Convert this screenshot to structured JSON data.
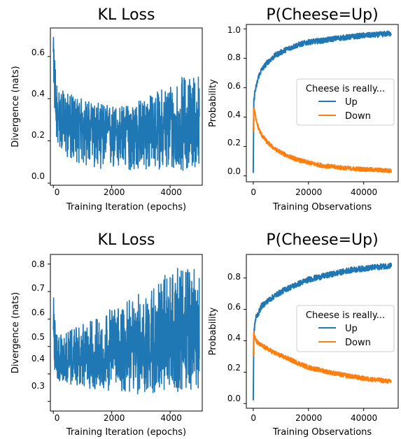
{
  "chart_data": [
    {
      "type": "line",
      "title": "KL Loss",
      "xlabel": "Training Iteration (epochs)",
      "ylabel": "Divergence (nats)",
      "xlim": [
        -100,
        5100
      ],
      "ylim": [
        -0.01,
        0.735
      ],
      "xticks": [
        0,
        2000,
        4000
      ],
      "xtick_labels": [
        "0",
        "2000",
        "4000"
      ],
      "yticks": [
        0.0,
        0.2,
        0.4,
        0.6
      ],
      "ytick_labels": [
        "0.0",
        "0.2",
        "0.4",
        "0.6"
      ],
      "grid": false,
      "color": "#1f77b4",
      "series": [
        {
          "x": [
            0,
            50,
            100,
            200,
            400,
            600,
            800,
            1000,
            1500,
            2000,
            2500,
            3000,
            3500,
            4000,
            4500,
            5000
          ],
          "mean": [
            0.6,
            0.42,
            0.35,
            0.32,
            0.3,
            0.29,
            0.28,
            0.27,
            0.26,
            0.25,
            0.25,
            0.25,
            0.255,
            0.26,
            0.265,
            0.27
          ],
          "low": [
            0.55,
            0.3,
            0.2,
            0.17,
            0.13,
            0.11,
            0.1,
            0.08,
            0.07,
            0.06,
            0.06,
            0.05,
            0.07,
            0.05,
            0.06,
            0.08
          ],
          "high": [
            0.7,
            0.62,
            0.5,
            0.45,
            0.43,
            0.42,
            0.41,
            0.4,
            0.38,
            0.37,
            0.37,
            0.4,
            0.43,
            0.48,
            0.51,
            0.52
          ]
        }
      ]
    },
    {
      "type": "line",
      "title": "P(Cheese=Up)",
      "xlabel": "Training Observations",
      "ylabel": "Probability",
      "xlim": [
        -2500,
        52500
      ],
      "ylim": [
        -0.04,
        1.03
      ],
      "xticks": [
        0,
        20000,
        40000
      ],
      "xtick_labels": [
        "0",
        "20000",
        "40000"
      ],
      "yticks": [
        0.0,
        0.2,
        0.4,
        0.6,
        0.8,
        1.0
      ],
      "ytick_labels": [
        "0.0",
        "0.2",
        "0.4",
        "0.6",
        "0.8",
        "1.0"
      ],
      "grid": false,
      "legend": {
        "title": "Cheese is really...",
        "placement": "center-right"
      },
      "series": [
        {
          "name": "Up",
          "color": "#1f77b4",
          "x": [
            0,
            200,
            500,
            1000,
            2000,
            3000,
            5000,
            8000,
            12000,
            16000,
            20000,
            25000,
            30000,
            35000,
            40000,
            45000,
            50000
          ],
          "values": [
            0.02,
            0.5,
            0.56,
            0.6,
            0.68,
            0.72,
            0.77,
            0.82,
            0.86,
            0.89,
            0.91,
            0.92,
            0.935,
            0.945,
            0.955,
            0.96,
            0.97
          ]
        },
        {
          "name": "Down",
          "color": "#ff7f0e",
          "x": [
            0,
            200,
            500,
            1000,
            2000,
            3000,
            5000,
            8000,
            12000,
            16000,
            20000,
            25000,
            30000,
            35000,
            40000,
            45000,
            50000
          ],
          "values": [
            0.3,
            0.46,
            0.44,
            0.38,
            0.32,
            0.28,
            0.23,
            0.18,
            0.14,
            0.11,
            0.09,
            0.07,
            0.06,
            0.05,
            0.045,
            0.04,
            0.035
          ]
        }
      ]
    },
    {
      "type": "line",
      "title": "KL Loss",
      "xlabel": "Training Iteration (epochs)",
      "ylabel": "Divergence (nats)",
      "xlim": [
        -100,
        5100
      ],
      "ylim": [
        0.265,
        0.835
      ],
      "xticks": [
        0,
        2000,
        4000
      ],
      "xtick_labels": [
        "0",
        "2000",
        "4000"
      ],
      "yticks": [
        0.3,
        0.4,
        0.5,
        0.6,
        0.7,
        0.8
      ],
      "ytick_labels": [
        "0.3",
        "0.4",
        "0.5",
        "0.6",
        "0.7",
        "0.8"
      ],
      "grid": false,
      "color": "#1f77b4",
      "series": [
        {
          "x": [
            0,
            50,
            100,
            200,
            400,
            600,
            800,
            1000,
            1500,
            2000,
            2500,
            3000,
            3500,
            4000,
            4500,
            5000
          ],
          "mean": [
            0.6,
            0.5,
            0.45,
            0.44,
            0.44,
            0.445,
            0.45,
            0.455,
            0.465,
            0.475,
            0.485,
            0.5,
            0.51,
            0.52,
            0.53,
            0.54
          ],
          "low": [
            0.55,
            0.4,
            0.38,
            0.37,
            0.37,
            0.36,
            0.36,
            0.35,
            0.34,
            0.34,
            0.33,
            0.32,
            0.33,
            0.33,
            0.34,
            0.35
          ],
          "high": [
            0.7,
            0.62,
            0.56,
            0.54,
            0.55,
            0.56,
            0.57,
            0.58,
            0.61,
            0.64,
            0.66,
            0.7,
            0.73,
            0.78,
            0.79,
            0.8
          ]
        }
      ]
    },
    {
      "type": "line",
      "title": "P(Cheese=Up)",
      "xlabel": "Training Observations",
      "ylabel": "Probability",
      "xlim": [
        -2500,
        52500
      ],
      "ylim": [
        -0.03,
        0.95
      ],
      "xticks": [
        0,
        20000,
        40000
      ],
      "xtick_labels": [
        "0",
        "20000",
        "40000"
      ],
      "yticks": [
        0.0,
        0.2,
        0.4,
        0.6,
        0.8
      ],
      "ytick_labels": [
        "0.0",
        "0.2",
        "0.4",
        "0.6",
        "0.8"
      ],
      "grid": false,
      "legend": {
        "title": "Cheese is really...",
        "placement": "center-right"
      },
      "series": [
        {
          "name": "Up",
          "color": "#1f77b4",
          "x": [
            0,
            200,
            500,
            1000,
            2000,
            3000,
            5000,
            8000,
            12000,
            16000,
            20000,
            25000,
            30000,
            35000,
            40000,
            45000,
            50000
          ],
          "values": [
            0.02,
            0.42,
            0.5,
            0.55,
            0.58,
            0.62,
            0.65,
            0.69,
            0.73,
            0.76,
            0.79,
            0.81,
            0.83,
            0.85,
            0.86,
            0.87,
            0.88
          ]
        },
        {
          "name": "Down",
          "color": "#ff7f0e",
          "x": [
            0,
            200,
            500,
            1000,
            2000,
            3000,
            5000,
            8000,
            12000,
            16000,
            20000,
            25000,
            30000,
            35000,
            40000,
            45000,
            50000
          ],
          "values": [
            0.3,
            0.46,
            0.42,
            0.4,
            0.38,
            0.37,
            0.35,
            0.32,
            0.29,
            0.26,
            0.23,
            0.21,
            0.19,
            0.175,
            0.16,
            0.15,
            0.14
          ]
        }
      ]
    }
  ]
}
